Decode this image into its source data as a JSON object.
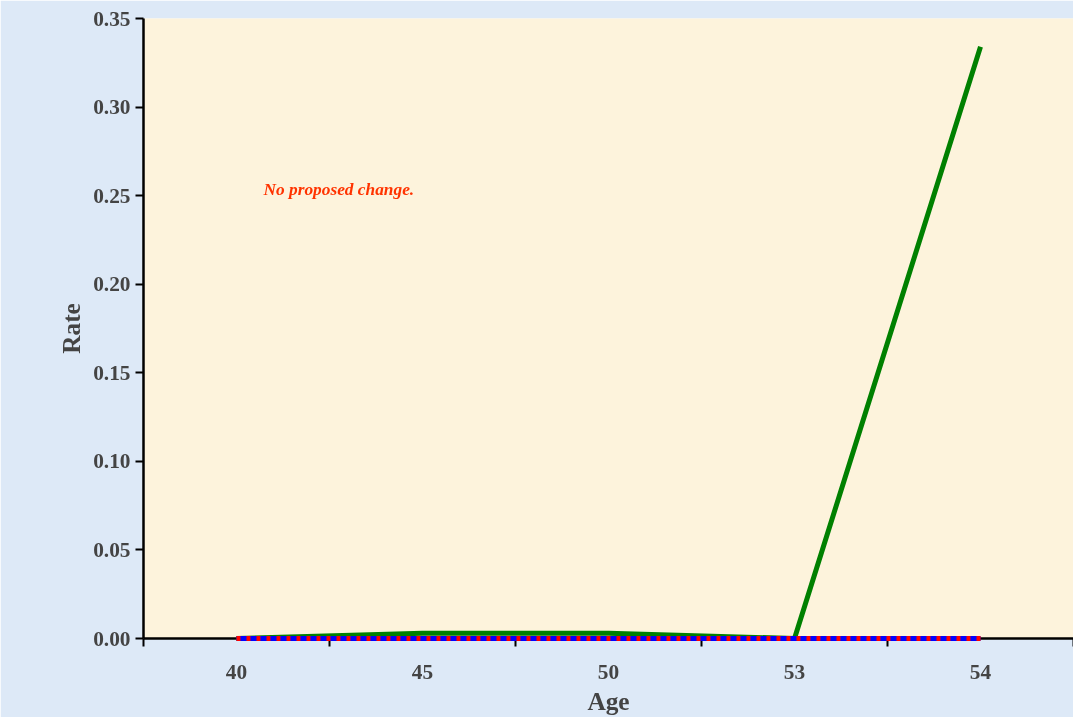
{
  "chart_data": {
    "type": "line",
    "xlabel": "Age",
    "ylabel": "Rate",
    "categories": [
      "40",
      "45",
      "50",
      "53",
      "54"
    ],
    "series": [
      {
        "color": "#008000",
        "values": [
          0,
          0.003,
          0.003,
          0,
          0.334
        ]
      },
      {
        "color": "#0000ff",
        "values": [
          0,
          0,
          0,
          0,
          0
        ]
      },
      {
        "color": "#ff0000",
        "values": [
          0,
          0,
          0,
          0,
          0
        ],
        "line_style": "dashed"
      }
    ],
    "ylim": [
      0,
      0.35
    ],
    "yticks": [
      {
        "value": 0,
        "label": "0.00"
      },
      {
        "value": 0.05,
        "label": "0.05"
      },
      {
        "value": 0.1,
        "label": "0.10"
      },
      {
        "value": 0.15,
        "label": "0.15"
      },
      {
        "value": 0.2,
        "label": "0.20"
      },
      {
        "value": 0.25,
        "label": "0.25"
      },
      {
        "value": 0.3,
        "label": "0.30"
      },
      {
        "value": 0.35,
        "label": "0.35"
      }
    ],
    "grid": false,
    "marker": "none",
    "annotations": [
      "No proposed change."
    ]
  }
}
